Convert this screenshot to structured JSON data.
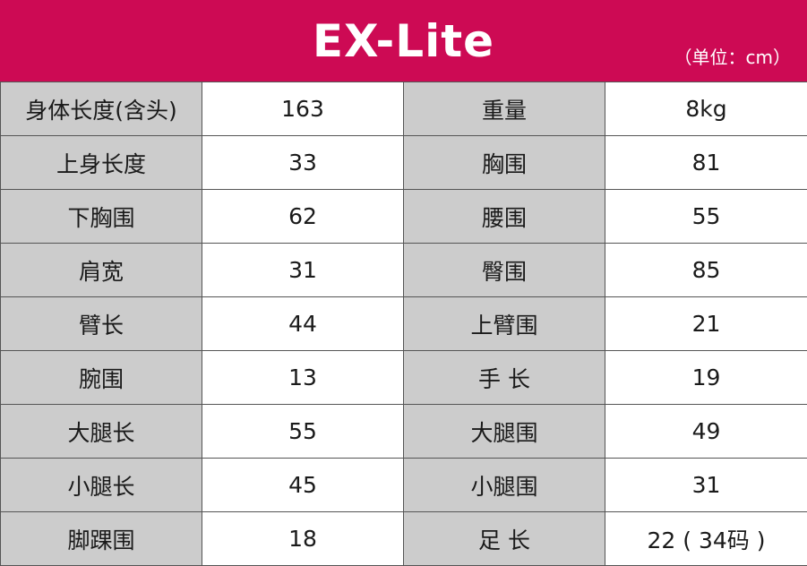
{
  "header": {
    "title": "EX-Lite",
    "unit": "（单位：cm）"
  },
  "colors": {
    "banner": "#cd0a54",
    "label_cell": "#cccccc",
    "value_cell": "#ffffff",
    "border": "#555555"
  },
  "rows": [
    {
      "left_label": "身体长度(含头)",
      "left_value": "163",
      "right_label": "重量",
      "right_value": "8kg"
    },
    {
      "left_label": "上身长度",
      "left_value": "33",
      "right_label": "胸围",
      "right_value": "81"
    },
    {
      "left_label": "下胸围",
      "left_value": "62",
      "right_label": "腰围",
      "right_value": "55"
    },
    {
      "left_label": "肩宽",
      "left_value": "31",
      "right_label": "臀围",
      "right_value": "85"
    },
    {
      "left_label": "臂长",
      "left_value": "44",
      "right_label": "上臂围",
      "right_value": "21"
    },
    {
      "left_label": "腕围",
      "left_value": "13",
      "right_label": "手 长",
      "right_value": "19"
    },
    {
      "left_label": "大腿长",
      "left_value": "55",
      "right_label": "大腿围",
      "right_value": "49"
    },
    {
      "left_label": "小腿长",
      "left_value": "45",
      "right_label": "小腿围",
      "right_value": "31"
    },
    {
      "left_label": "脚踝围",
      "left_value": "18",
      "right_label": "足 长",
      "right_value": "22 ( 34码 )"
    }
  ]
}
